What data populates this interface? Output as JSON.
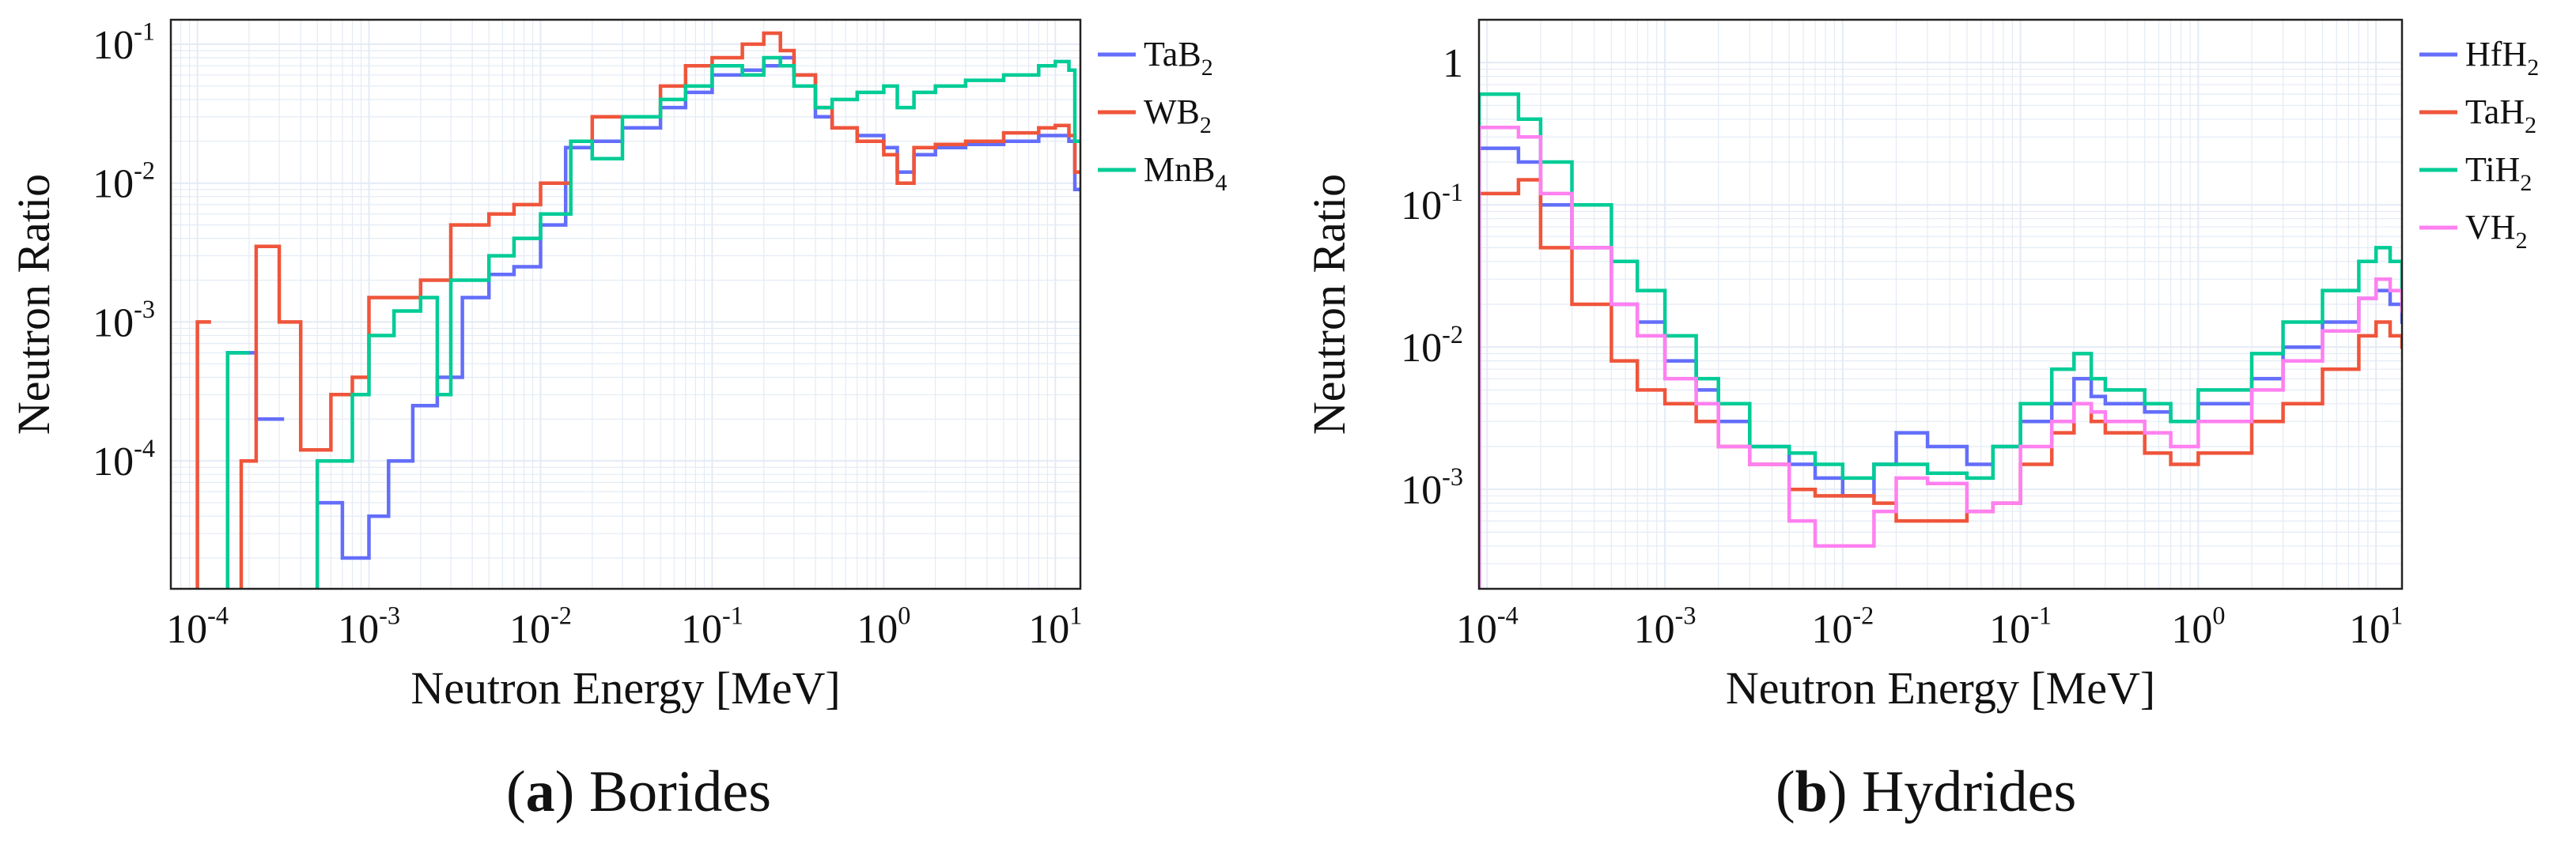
{
  "colors": {
    "blue": "#636efa",
    "red": "#ef553b",
    "green": "#00cc96",
    "pink": "#ff80f0",
    "grid": "#e4ebf5",
    "axis": "#222222"
  },
  "captions": [
    {
      "label": "a",
      "text": "Borides"
    },
    {
      "label": "b",
      "text": "Hydrides"
    }
  ],
  "chart_data": [
    {
      "type": "line",
      "step": true,
      "panel": "a",
      "title": "Borides",
      "xlabel": "Neutron Energy [MeV]",
      "ylabel": "Neutron Ratio",
      "xscale": "log",
      "yscale": "log",
      "xlim": [
        7e-05,
        14
      ],
      "ylim": [
        1.2e-05,
        0.15
      ],
      "grid": true,
      "legend_position": "outside-right",
      "xticks": [
        {
          "value": 0.0001,
          "base": "10",
          "exp": "-4"
        },
        {
          "value": 0.001,
          "base": "10",
          "exp": "-3"
        },
        {
          "value": 0.01,
          "base": "10",
          "exp": "-2"
        },
        {
          "value": 0.1,
          "base": "10",
          "exp": "-1"
        },
        {
          "value": 1,
          "base": "10",
          "exp": "0"
        },
        {
          "value": 10,
          "base": "10",
          "exp": "1"
        }
      ],
      "yticks": [
        {
          "value": 0.0001,
          "base": "10",
          "exp": "-4"
        },
        {
          "value": 0.001,
          "base": "10",
          "exp": "-3"
        },
        {
          "value": 0.01,
          "base": "10",
          "exp": "-2"
        },
        {
          "value": 0.1,
          "base": "10",
          "exp": "-1"
        }
      ],
      "series": [
        {
          "name": "TaB₂",
          "legend_base": "TaB",
          "legend_sub": "2",
          "color": "#636efa",
          "x": [
            0.00015,
            0.00022,
            0.00032,
            0.0005,
            0.0007,
            0.001,
            0.0013,
            0.0018,
            0.0025,
            0.0035,
            0.005,
            0.007,
            0.01,
            0.014,
            0.02,
            0.03,
            0.05,
            0.07,
            0.1,
            0.15,
            0.2,
            0.25,
            0.3,
            0.4,
            0.5,
            0.7,
            1.0,
            1.2,
            1.5,
            2,
            3,
            5,
            8,
            10,
            12,
            13
          ],
          "y": [
            0.0006,
            0.0002,
            null,
            5e-05,
            2e-05,
            4e-05,
            0.0001,
            0.00025,
            0.0004,
            0.0015,
            0.0022,
            0.0025,
            0.005,
            0.018,
            0.02,
            0.025,
            0.035,
            0.045,
            0.06,
            0.065,
            0.07,
            0.08,
            0.06,
            0.03,
            0.025,
            0.022,
            0.018,
            0.012,
            0.016,
            0.018,
            0.019,
            0.02,
            0.022,
            0.022,
            0.02,
            0.009
          ]
        },
        {
          "name": "WB₂",
          "legend_base": "WB",
          "legend_sub": "2",
          "color": "#ef553b",
          "x": [
            0.0001,
            0.00012,
            0.00018,
            0.00022,
            0.0003,
            0.0004,
            0.0006,
            0.0008,
            0.001,
            0.0014,
            0.002,
            0.003,
            0.005,
            0.007,
            0.01,
            0.015,
            0.02,
            0.03,
            0.05,
            0.07,
            0.1,
            0.15,
            0.2,
            0.25,
            0.3,
            0.4,
            0.5,
            0.7,
            1.0,
            1.2,
            1.5,
            2,
            3,
            5,
            8,
            10,
            12,
            13
          ],
          "y": [
            0.001,
            null,
            0.0001,
            0.0035,
            0.001,
            0.00012,
            0.0003,
            0.0004,
            0.0015,
            0.0015,
            0.002,
            0.005,
            0.006,
            0.007,
            0.01,
            0.02,
            0.03,
            0.03,
            0.05,
            0.07,
            0.08,
            0.1,
            0.12,
            0.09,
            0.06,
            0.035,
            0.025,
            0.02,
            0.016,
            0.01,
            0.018,
            0.019,
            0.02,
            0.023,
            0.025,
            0.026,
            0.022,
            0.012
          ]
        },
        {
          "name": "MnB₄",
          "legend_base": "MnB",
          "legend_sub": "4",
          "color": "#00cc96",
          "x": [
            0.00015,
            0.0002,
            0.0005,
            0.0008,
            0.001,
            0.0014,
            0.002,
            0.0025,
            0.003,
            0.005,
            0.007,
            0.01,
            0.015,
            0.02,
            0.03,
            0.05,
            0.07,
            0.1,
            0.15,
            0.2,
            0.25,
            0.3,
            0.4,
            0.5,
            0.7,
            1.0,
            1.2,
            1.5,
            2,
            3,
            5,
            8,
            10,
            12,
            13
          ],
          "y": [
            0.0006,
            null,
            0.0001,
            0.0003,
            0.0008,
            0.0012,
            0.0015,
            0.0003,
            0.002,
            0.003,
            0.004,
            0.006,
            0.02,
            0.015,
            0.03,
            0.04,
            0.05,
            0.07,
            0.06,
            0.08,
            0.07,
            0.05,
            0.035,
            0.04,
            0.045,
            0.05,
            0.035,
            0.045,
            0.05,
            0.055,
            0.06,
            0.07,
            0.075,
            0.065,
            0.02
          ]
        }
      ]
    },
    {
      "type": "line",
      "step": true,
      "panel": "b",
      "title": "Hydrides",
      "xlabel": "Neutron Energy [MeV]",
      "ylabel": "Neutron Ratio",
      "xscale": "log",
      "yscale": "log",
      "xlim": [
        9e-05,
        14
      ],
      "ylim": [
        0.0002,
        2.0
      ],
      "grid": true,
      "legend_position": "outside-right",
      "xticks": [
        {
          "value": 0.0001,
          "base": "10",
          "exp": "-4"
        },
        {
          "value": 0.001,
          "base": "10",
          "exp": "-3"
        },
        {
          "value": 0.01,
          "base": "10",
          "exp": "-2"
        },
        {
          "value": 0.1,
          "base": "10",
          "exp": "-1"
        },
        {
          "value": 1,
          "base": "10",
          "exp": "0"
        },
        {
          "value": 10,
          "base": "10",
          "exp": "1"
        }
      ],
      "yticks": [
        {
          "value": 0.001,
          "base": "10",
          "exp": "-3"
        },
        {
          "value": 0.01,
          "base": "10",
          "exp": "-2"
        },
        {
          "value": 0.1,
          "base": "10",
          "exp": "-1"
        },
        {
          "value": 1,
          "base": "1",
          "exp": ""
        }
      ],
      "series": [
        {
          "name": "HfH₂",
          "legend_base": "HfH",
          "legend_sub": "2",
          "color": "#636efa",
          "x": [
            9e-05,
            0.00015,
            0.0002,
            0.0003,
            0.0005,
            0.0007,
            0.001,
            0.0015,
            0.002,
            0.003,
            0.005,
            0.007,
            0.01,
            0.015,
            0.02,
            0.03,
            0.05,
            0.07,
            0.1,
            0.15,
            0.2,
            0.25,
            0.3,
            0.5,
            0.7,
            1,
            2,
            3,
            5,
            8,
            10,
            12,
            14
          ],
          "y": [
            0.25,
            0.2,
            0.1,
            0.05,
            0.02,
            0.015,
            0.008,
            0.005,
            0.003,
            0.002,
            0.0015,
            0.0012,
            0.0009,
            0.0015,
            0.0025,
            0.002,
            0.0015,
            0.002,
            0.003,
            0.004,
            0.006,
            0.0045,
            0.004,
            0.0035,
            0.003,
            0.004,
            0.006,
            0.01,
            0.015,
            0.022,
            0.025,
            0.02,
            0.015
          ]
        },
        {
          "name": "TaH₂",
          "legend_base": "TaH",
          "legend_sub": "2",
          "color": "#ef553b",
          "x": [
            9e-05,
            0.00015,
            0.0002,
            0.0003,
            0.0005,
            0.0007,
            0.001,
            0.0015,
            0.002,
            0.003,
            0.005,
            0.007,
            0.01,
            0.015,
            0.02,
            0.03,
            0.05,
            0.07,
            0.1,
            0.15,
            0.2,
            0.25,
            0.3,
            0.5,
            0.7,
            1,
            2,
            3,
            5,
            8,
            10,
            12,
            14
          ],
          "y": [
            0.12,
            0.15,
            0.05,
            0.02,
            0.008,
            0.005,
            0.004,
            0.003,
            0.002,
            0.0015,
            0.001,
            0.0009,
            0.0009,
            0.0008,
            0.0006,
            0.0006,
            0.0007,
            0.0008,
            0.0015,
            0.0025,
            0.004,
            0.003,
            0.0025,
            0.0018,
            0.0015,
            0.0018,
            0.003,
            0.004,
            0.007,
            0.012,
            0.015,
            0.012,
            0.01
          ]
        },
        {
          "name": "TiH₂",
          "legend_base": "TiH",
          "legend_sub": "2",
          "color": "#00cc96",
          "x": [
            9e-05,
            0.00015,
            0.0002,
            0.0003,
            0.0005,
            0.0007,
            0.001,
            0.0015,
            0.002,
            0.003,
            0.005,
            0.007,
            0.01,
            0.015,
            0.02,
            0.03,
            0.05,
            0.07,
            0.1,
            0.15,
            0.2,
            0.25,
            0.3,
            0.5,
            0.7,
            1,
            2,
            3,
            5,
            8,
            10,
            12,
            14
          ],
          "y": [
            0.6,
            0.4,
            0.2,
            0.1,
            0.04,
            0.025,
            0.012,
            0.006,
            0.004,
            0.002,
            0.0018,
            0.0015,
            0.0012,
            0.0015,
            0.0015,
            0.0013,
            0.0012,
            0.002,
            0.004,
            0.007,
            0.009,
            0.006,
            0.005,
            0.004,
            0.003,
            0.005,
            0.009,
            0.015,
            0.025,
            0.04,
            0.05,
            0.04,
            0.025
          ]
        },
        {
          "name": "VH₂",
          "legend_base": "VH",
          "legend_sub": "2",
          "color": "#ff80f0",
          "x": [
            9e-05,
            0.00015,
            0.0002,
            0.0003,
            0.0005,
            0.0007,
            0.001,
            0.0015,
            0.002,
            0.003,
            0.005,
            0.007,
            0.01,
            0.015,
            0.02,
            0.03,
            0.05,
            0.07,
            0.1,
            0.15,
            0.2,
            0.25,
            0.3,
            0.5,
            0.7,
            1,
            2,
            3,
            5,
            8,
            10,
            12,
            14
          ],
          "y": [
            0.35,
            0.3,
            0.12,
            0.05,
            0.02,
            0.012,
            0.006,
            0.004,
            0.002,
            0.0015,
            0.0006,
            0.0004,
            0.0004,
            0.0007,
            0.0012,
            0.0011,
            0.0007,
            0.0008,
            0.002,
            0.003,
            0.004,
            0.0035,
            0.003,
            0.0025,
            0.002,
            0.003,
            0.005,
            0.008,
            0.013,
            0.022,
            0.03,
            0.025,
            0.018
          ]
        }
      ]
    }
  ]
}
